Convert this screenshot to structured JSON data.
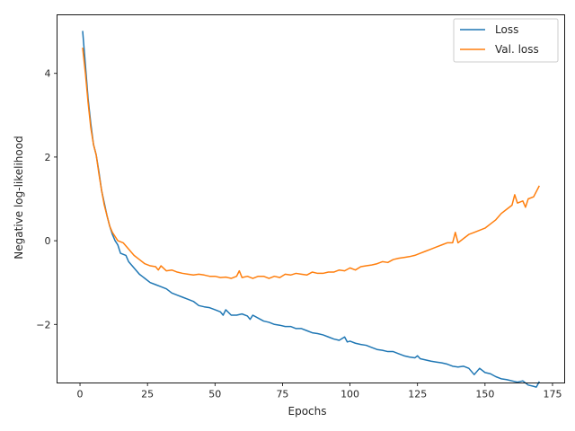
{
  "chart_data": {
    "type": "line",
    "title": "",
    "xlabel": "Epochs",
    "ylabel": "Negative log-likelihood",
    "xlim": [
      -8.5,
      179.5
    ],
    "ylim": [
      -3.4,
      5.4
    ],
    "x_ticks": [
      0,
      25,
      50,
      75,
      100,
      125,
      150,
      175
    ],
    "y_ticks": [
      -2,
      0,
      2,
      4
    ],
    "y_tick_labels": [
      "−2",
      "0",
      "2",
      "4"
    ],
    "grid": false,
    "legend": "top-right",
    "colors": {
      "loss": "#1f77b4",
      "val_loss": "#ff7f0e"
    },
    "series": [
      {
        "name": "Loss",
        "color": "#1f77b4",
        "points": [
          [
            1,
            5.0
          ],
          [
            2,
            4.2
          ],
          [
            3,
            3.4
          ],
          [
            4,
            2.8
          ],
          [
            5,
            2.3
          ],
          [
            6,
            2.05
          ],
          [
            7,
            1.65
          ],
          [
            8,
            1.2
          ],
          [
            9,
            0.9
          ],
          [
            10,
            0.6
          ],
          [
            11,
            0.35
          ],
          [
            12,
            0.15
          ],
          [
            13,
            0.0
          ],
          [
            14,
            -0.1
          ],
          [
            15,
            -0.3
          ],
          [
            17,
            -0.35
          ],
          [
            18,
            -0.5
          ],
          [
            20,
            -0.65
          ],
          [
            22,
            -0.8
          ],
          [
            23,
            -0.85
          ],
          [
            24,
            -0.9
          ],
          [
            26,
            -1.0
          ],
          [
            28,
            -1.05
          ],
          [
            30,
            -1.1
          ],
          [
            32,
            -1.15
          ],
          [
            34,
            -1.25
          ],
          [
            36,
            -1.3
          ],
          [
            38,
            -1.35
          ],
          [
            40,
            -1.4
          ],
          [
            42,
            -1.45
          ],
          [
            44,
            -1.55
          ],
          [
            46,
            -1.58
          ],
          [
            48,
            -1.6
          ],
          [
            50,
            -1.65
          ],
          [
            52,
            -1.7
          ],
          [
            53,
            -1.78
          ],
          [
            54,
            -1.65
          ],
          [
            56,
            -1.78
          ],
          [
            58,
            -1.78
          ],
          [
            60,
            -1.75
          ],
          [
            62,
            -1.8
          ],
          [
            63,
            -1.88
          ],
          [
            64,
            -1.78
          ],
          [
            66,
            -1.85
          ],
          [
            68,
            -1.92
          ],
          [
            70,
            -1.95
          ],
          [
            72,
            -2.0
          ],
          [
            74,
            -2.02
          ],
          [
            76,
            -2.05
          ],
          [
            78,
            -2.05
          ],
          [
            80,
            -2.1
          ],
          [
            82,
            -2.1
          ],
          [
            84,
            -2.15
          ],
          [
            86,
            -2.2
          ],
          [
            88,
            -2.22
          ],
          [
            90,
            -2.25
          ],
          [
            92,
            -2.3
          ],
          [
            94,
            -2.35
          ],
          [
            96,
            -2.38
          ],
          [
            98,
            -2.3
          ],
          [
            99,
            -2.42
          ],
          [
            100,
            -2.4
          ],
          [
            102,
            -2.45
          ],
          [
            104,
            -2.48
          ],
          [
            106,
            -2.5
          ],
          [
            108,
            -2.55
          ],
          [
            110,
            -2.6
          ],
          [
            112,
            -2.62
          ],
          [
            114,
            -2.65
          ],
          [
            116,
            -2.65
          ],
          [
            118,
            -2.7
          ],
          [
            120,
            -2.75
          ],
          [
            122,
            -2.78
          ],
          [
            124,
            -2.8
          ],
          [
            125,
            -2.75
          ],
          [
            126,
            -2.82
          ],
          [
            128,
            -2.85
          ],
          [
            130,
            -2.88
          ],
          [
            132,
            -2.9
          ],
          [
            134,
            -2.92
          ],
          [
            136,
            -2.95
          ],
          [
            138,
            -3.0
          ],
          [
            140,
            -3.02
          ],
          [
            142,
            -3.0
          ],
          [
            144,
            -3.05
          ],
          [
            146,
            -3.2
          ],
          [
            148,
            -3.05
          ],
          [
            150,
            -3.15
          ],
          [
            152,
            -3.18
          ],
          [
            154,
            -3.25
          ],
          [
            156,
            -3.3
          ],
          [
            158,
            -3.32
          ],
          [
            160,
            -3.35
          ],
          [
            162,
            -3.38
          ],
          [
            164,
            -3.35
          ],
          [
            166,
            -3.45
          ],
          [
            168,
            -3.48
          ],
          [
            169,
            -3.5
          ],
          [
            170,
            -3.38
          ]
        ]
      },
      {
        "name": "Val. loss",
        "color": "#ff7f0e",
        "points": [
          [
            1,
            4.6
          ],
          [
            2,
            4.0
          ],
          [
            3,
            3.3
          ],
          [
            4,
            2.7
          ],
          [
            5,
            2.3
          ],
          [
            6,
            2.05
          ],
          [
            7,
            1.6
          ],
          [
            8,
            1.2
          ],
          [
            9,
            0.85
          ],
          [
            10,
            0.6
          ],
          [
            11,
            0.35
          ],
          [
            12,
            0.2
          ],
          [
            13,
            0.1
          ],
          [
            14,
            0.0
          ],
          [
            16,
            -0.05
          ],
          [
            18,
            -0.2
          ],
          [
            20,
            -0.35
          ],
          [
            22,
            -0.45
          ],
          [
            24,
            -0.55
          ],
          [
            26,
            -0.6
          ],
          [
            28,
            -0.62
          ],
          [
            29,
            -0.7
          ],
          [
            30,
            -0.6
          ],
          [
            32,
            -0.72
          ],
          [
            34,
            -0.7
          ],
          [
            36,
            -0.75
          ],
          [
            38,
            -0.78
          ],
          [
            40,
            -0.8
          ],
          [
            42,
            -0.82
          ],
          [
            44,
            -0.8
          ],
          [
            46,
            -0.82
          ],
          [
            48,
            -0.85
          ],
          [
            50,
            -0.85
          ],
          [
            52,
            -0.88
          ],
          [
            54,
            -0.87
          ],
          [
            56,
            -0.9
          ],
          [
            58,
            -0.85
          ],
          [
            59,
            -0.72
          ],
          [
            60,
            -0.88
          ],
          [
            62,
            -0.85
          ],
          [
            64,
            -0.9
          ],
          [
            66,
            -0.85
          ],
          [
            68,
            -0.85
          ],
          [
            70,
            -0.9
          ],
          [
            72,
            -0.85
          ],
          [
            74,
            -0.88
          ],
          [
            76,
            -0.8
          ],
          [
            78,
            -0.82
          ],
          [
            80,
            -0.78
          ],
          [
            82,
            -0.8
          ],
          [
            84,
            -0.82
          ],
          [
            86,
            -0.75
          ],
          [
            88,
            -0.78
          ],
          [
            90,
            -0.78
          ],
          [
            92,
            -0.75
          ],
          [
            94,
            -0.75
          ],
          [
            96,
            -0.7
          ],
          [
            98,
            -0.72
          ],
          [
            100,
            -0.65
          ],
          [
            102,
            -0.7
          ],
          [
            104,
            -0.62
          ],
          [
            106,
            -0.6
          ],
          [
            108,
            -0.58
          ],
          [
            110,
            -0.55
          ],
          [
            112,
            -0.5
          ],
          [
            114,
            -0.52
          ],
          [
            116,
            -0.45
          ],
          [
            118,
            -0.42
          ],
          [
            120,
            -0.4
          ],
          [
            122,
            -0.38
          ],
          [
            124,
            -0.35
          ],
          [
            126,
            -0.3
          ],
          [
            128,
            -0.25
          ],
          [
            130,
            -0.2
          ],
          [
            132,
            -0.15
          ],
          [
            134,
            -0.1
          ],
          [
            136,
            -0.05
          ],
          [
            138,
            -0.05
          ],
          [
            139,
            0.2
          ],
          [
            140,
            -0.05
          ],
          [
            142,
            0.05
          ],
          [
            144,
            0.15
          ],
          [
            146,
            0.2
          ],
          [
            148,
            0.25
          ],
          [
            150,
            0.3
          ],
          [
            152,
            0.4
          ],
          [
            154,
            0.5
          ],
          [
            156,
            0.65
          ],
          [
            158,
            0.75
          ],
          [
            160,
            0.85
          ],
          [
            161,
            1.1
          ],
          [
            162,
            0.9
          ],
          [
            164,
            0.95
          ],
          [
            165,
            0.8
          ],
          [
            166,
            1.0
          ],
          [
            168,
            1.05
          ],
          [
            170,
            1.3
          ]
        ]
      }
    ]
  }
}
